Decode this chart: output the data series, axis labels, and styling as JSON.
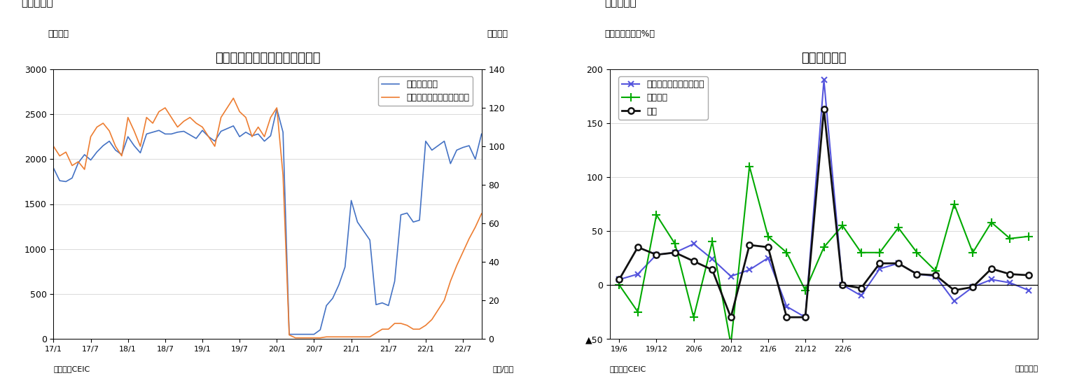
{
  "fig3": {
    "title": "国内線旅客数と外国人訪問者数",
    "label_left": "（万人）",
    "label_right": "（万人）",
    "source": "（資料）CEIC",
    "xlabel": "（年/月）",
    "header": "（図表３）",
    "ylim_left": [
      0,
      3000
    ],
    "ylim_right": [
      0,
      140
    ],
    "yticks_left": [
      0,
      500,
      1000,
      1500,
      2000,
      2500,
      3000
    ],
    "yticks_right": [
      0,
      20,
      40,
      60,
      80,
      100,
      120,
      140
    ],
    "domestic_color": "#4472c4",
    "foreign_color": "#ed7d31",
    "domestic_label": "国内線旅客数",
    "foreign_label": "外国人訪問者数（右目盛）",
    "domestic_y": [
      1900,
      1760,
      1750,
      1790,
      1960,
      2050,
      1990,
      2080,
      2150,
      2200,
      2100,
      2050,
      2250,
      2150,
      2070,
      2280,
      2300,
      2320,
      2280,
      2280,
      2300,
      2310,
      2270,
      2230,
      2320,
      2250,
      2200,
      2310,
      2340,
      2370,
      2250,
      2300,
      2260,
      2280,
      2200,
      2260,
      2560,
      2300,
      50,
      50,
      50,
      50,
      50,
      100,
      370,
      450,
      600,
      800,
      1540,
      1300,
      1200,
      1100,
      380,
      400,
      370,
      640,
      1380,
      1400,
      1300,
      1320,
      2200,
      2100,
      2150,
      2200,
      1950,
      2100,
      2130,
      2150,
      2000,
      2280
    ],
    "foreign_y": [
      100,
      95,
      97,
      90,
      92,
      88,
      105,
      110,
      112,
      108,
      100,
      95,
      115,
      108,
      100,
      115,
      112,
      118,
      120,
      115,
      110,
      113,
      115,
      112,
      110,
      105,
      100,
      115,
      120,
      125,
      118,
      115,
      105,
      110,
      105,
      115,
      120,
      85,
      2,
      0.5,
      0.5,
      0.5,
      0.5,
      0.5,
      1,
      1,
      1,
      1,
      1,
      1,
      1,
      1,
      3,
      5,
      5,
      8,
      8,
      7,
      5,
      5,
      7,
      10,
      15,
      20,
      30,
      38,
      45,
      52,
      58,
      65
    ]
  },
  "fig4": {
    "title": "中央政府支出",
    "label_left": "（前年同期比、%）",
    "source": "（資料）CEIC",
    "xlabel": "（四半期）",
    "header": "（図表４）",
    "ylim": [
      -50,
      200
    ],
    "yticks": [
      -50,
      0,
      50,
      100,
      150,
      200
    ],
    "yticklabels": [
      "▲50",
      "0",
      "50",
      "100",
      "150",
      "200"
    ],
    "xtick_labels": [
      "19/6",
      "19/12",
      "20/6",
      "20/12",
      "21/6",
      "21/12",
      "22/6"
    ],
    "line1_label": "経常支出（利払い除く）",
    "line2_label": "資本支出",
    "line3_label": "歳出",
    "line1_color": "#5555dd",
    "line2_color": "#00aa00",
    "line3_color": "#111111",
    "line1_y": [
      5,
      10,
      28,
      30,
      38,
      24,
      8,
      14,
      25,
      -20,
      -30,
      190,
      0,
      -10,
      15,
      20,
      10,
      8,
      -15,
      -2,
      5,
      2,
      -5
    ],
    "line2_y": [
      0,
      -25,
      65,
      38,
      -30,
      40,
      -55,
      110,
      45,
      30,
      -5,
      35,
      55,
      30,
      30,
      53,
      30,
      13,
      75,
      30,
      58,
      43,
      45
    ],
    "line3_y": [
      5,
      35,
      28,
      30,
      22,
      14,
      -30,
      37,
      35,
      -30,
      -30,
      163,
      0,
      -3,
      20,
      20,
      10,
      9,
      -5,
      -2,
      15,
      10,
      9
    ],
    "n_points": 23
  }
}
